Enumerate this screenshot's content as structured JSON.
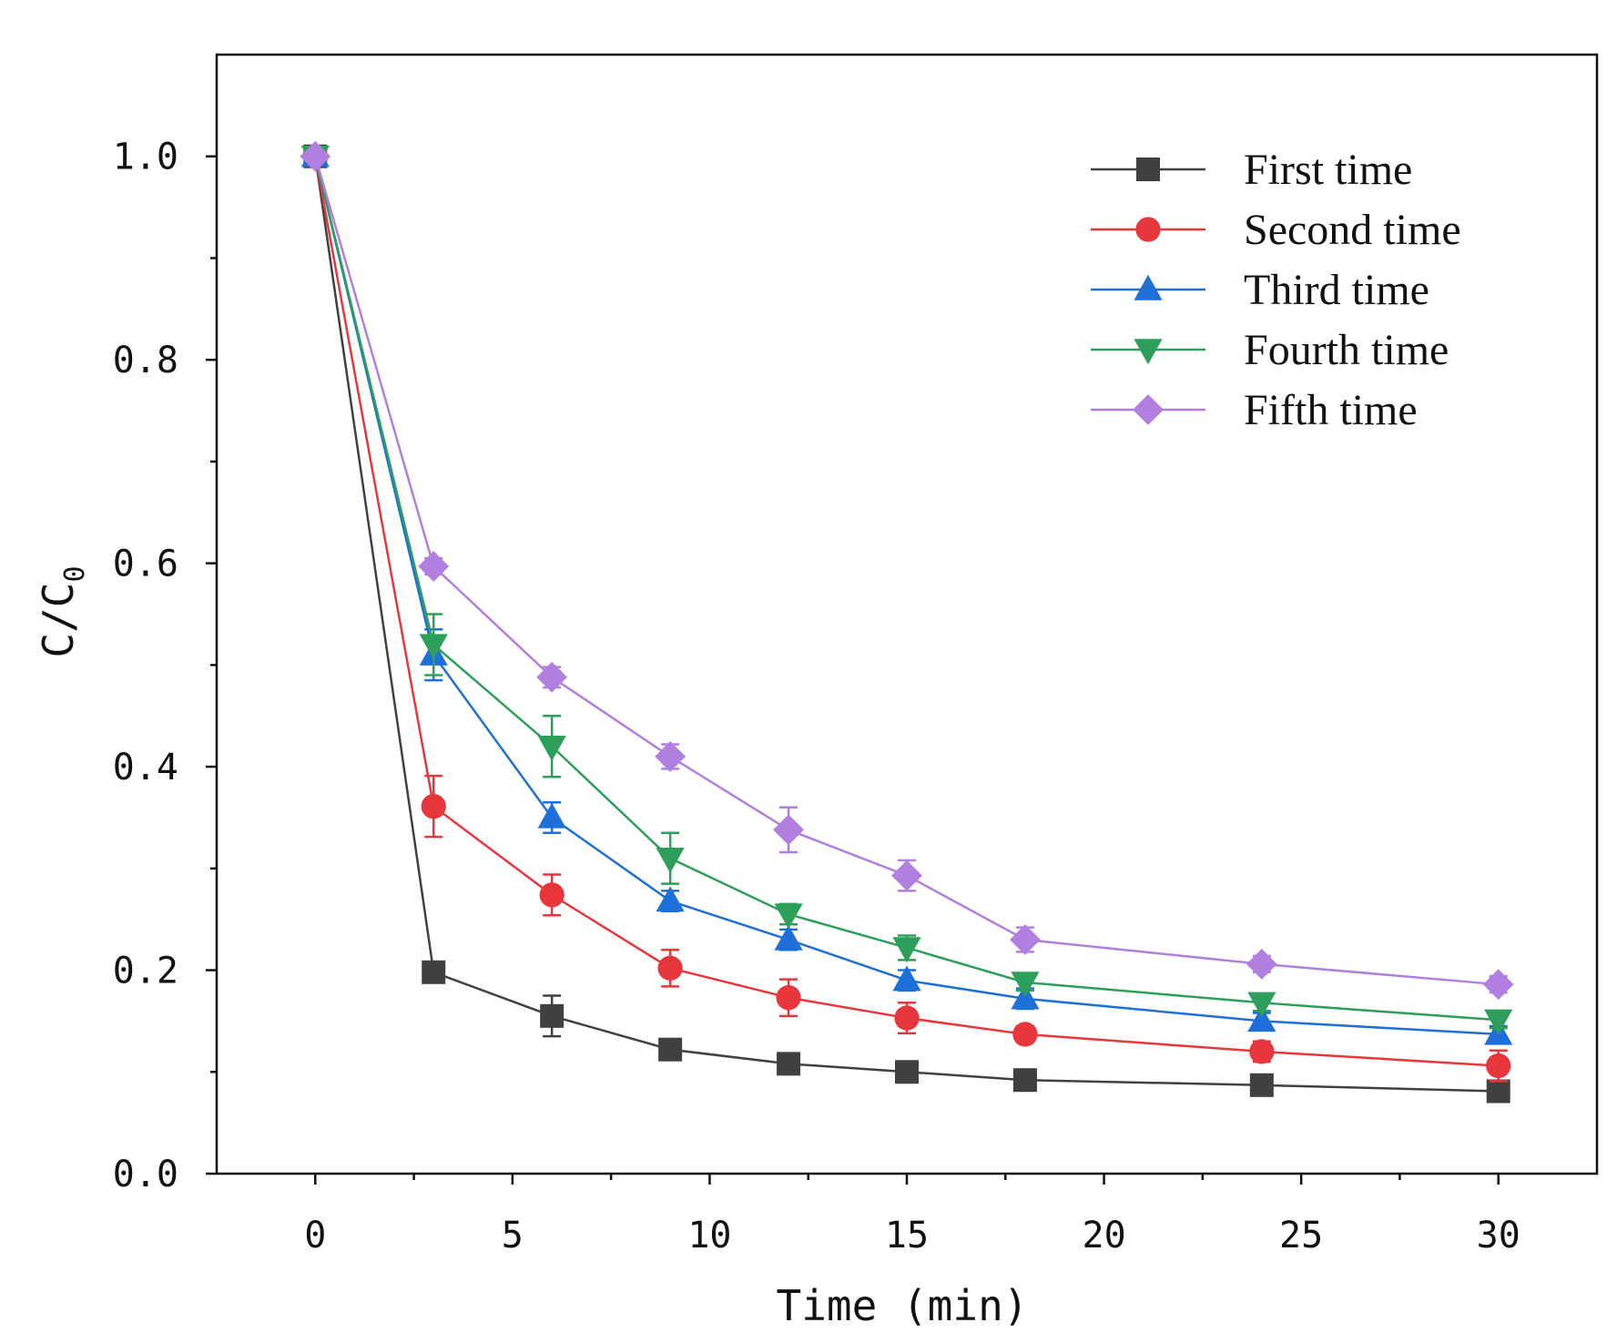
{
  "chart_data": {
    "type": "line",
    "title": "",
    "xlabel": "Time (min)",
    "ylabel_main": "C/C",
    "ylabel_sub": "0",
    "xlim": [
      -2.5,
      32.5
    ],
    "ylim": [
      0,
      1.1
    ],
    "x_ticks": [
      0,
      5,
      10,
      15,
      20,
      25,
      30
    ],
    "x_tick_labels": [
      "0",
      "5",
      "10",
      "15",
      "20",
      "25",
      "30"
    ],
    "y_ticks": [
      0,
      0.2,
      0.4,
      0.6,
      0.8,
      1.0
    ],
    "y_tick_labels": [
      "0.0",
      "0.2",
      "0.4",
      "0.6",
      "0.8",
      "1.0"
    ],
    "legend_position": "top-right",
    "x": [
      0,
      3,
      6,
      9,
      12,
      15,
      18,
      24,
      30
    ],
    "series": [
      {
        "name": "First time",
        "color": "#404040",
        "marker": "square",
        "values": [
          1.0,
          0.198,
          0.155,
          0.122,
          0.108,
          0.1,
          0.092,
          0.087,
          0.081
        ],
        "errors": [
          0,
          0.005,
          0.02,
          0.005,
          0.005,
          0.005,
          0.005,
          0.005,
          0.005
        ]
      },
      {
        "name": "Second time",
        "color": "#e8373c",
        "marker": "circle",
        "values": [
          1.0,
          0.361,
          0.274,
          0.202,
          0.173,
          0.153,
          0.137,
          0.12,
          0.106
        ],
        "errors": [
          0,
          0.03,
          0.02,
          0.018,
          0.018,
          0.015,
          0.008,
          0.01,
          0.015
        ]
      },
      {
        "name": "Third time",
        "color": "#1f6fd8",
        "marker": "triangle-up",
        "values": [
          1.0,
          0.51,
          0.35,
          0.268,
          0.23,
          0.19,
          0.172,
          0.15,
          0.137
        ],
        "errors": [
          0,
          0.025,
          0.015,
          0.01,
          0.01,
          0.01,
          0.01,
          0.008,
          0.008
        ]
      },
      {
        "name": "Fourth time",
        "color": "#2e9f5a",
        "marker": "triangle-down",
        "values": [
          1.0,
          0.52,
          0.42,
          0.31,
          0.255,
          0.222,
          0.188,
          0.168,
          0.151
        ],
        "errors": [
          0,
          0.03,
          0.03,
          0.025,
          0.01,
          0.012,
          0.008,
          0.008,
          0.008
        ]
      },
      {
        "name": "Fifth time",
        "color": "#b07fe0",
        "marker": "diamond",
        "values": [
          1.0,
          0.597,
          0.488,
          0.41,
          0.338,
          0.293,
          0.23,
          0.206,
          0.186
        ],
        "errors": [
          0,
          0.008,
          0.01,
          0.012,
          0.022,
          0.015,
          0.012,
          0.008,
          0.008
        ]
      }
    ]
  }
}
